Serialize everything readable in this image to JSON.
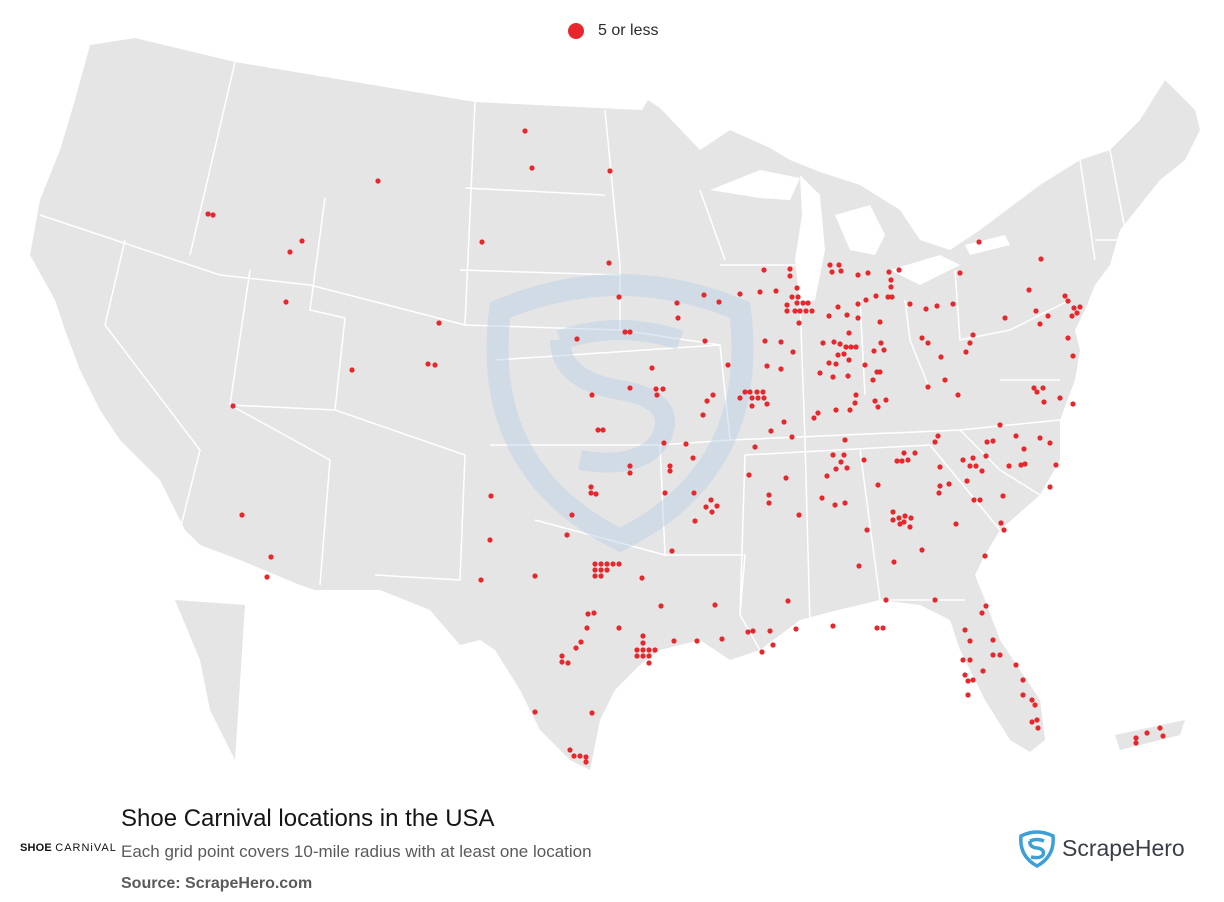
{
  "legend": {
    "label": "5 or less",
    "color": "#e8272c"
  },
  "title": "Shoe Carnival locations in the USA",
  "subtitle": "Each grid point covers 10-mile radius with at least one location",
  "source": "Source: ScrapeHero.com",
  "brand_logo": {
    "bold": "SHOE",
    "thin": "CARNiVAL"
  },
  "scrapehero_logo": {
    "name": "ScrapeHero",
    "icon": "shield-s-icon",
    "color": "#3d9fd8"
  },
  "colors": {
    "land": "#e5e5e5",
    "border": "#ffffff",
    "dot": "#e8272c",
    "watermark": "#b8cfe6"
  }
}
